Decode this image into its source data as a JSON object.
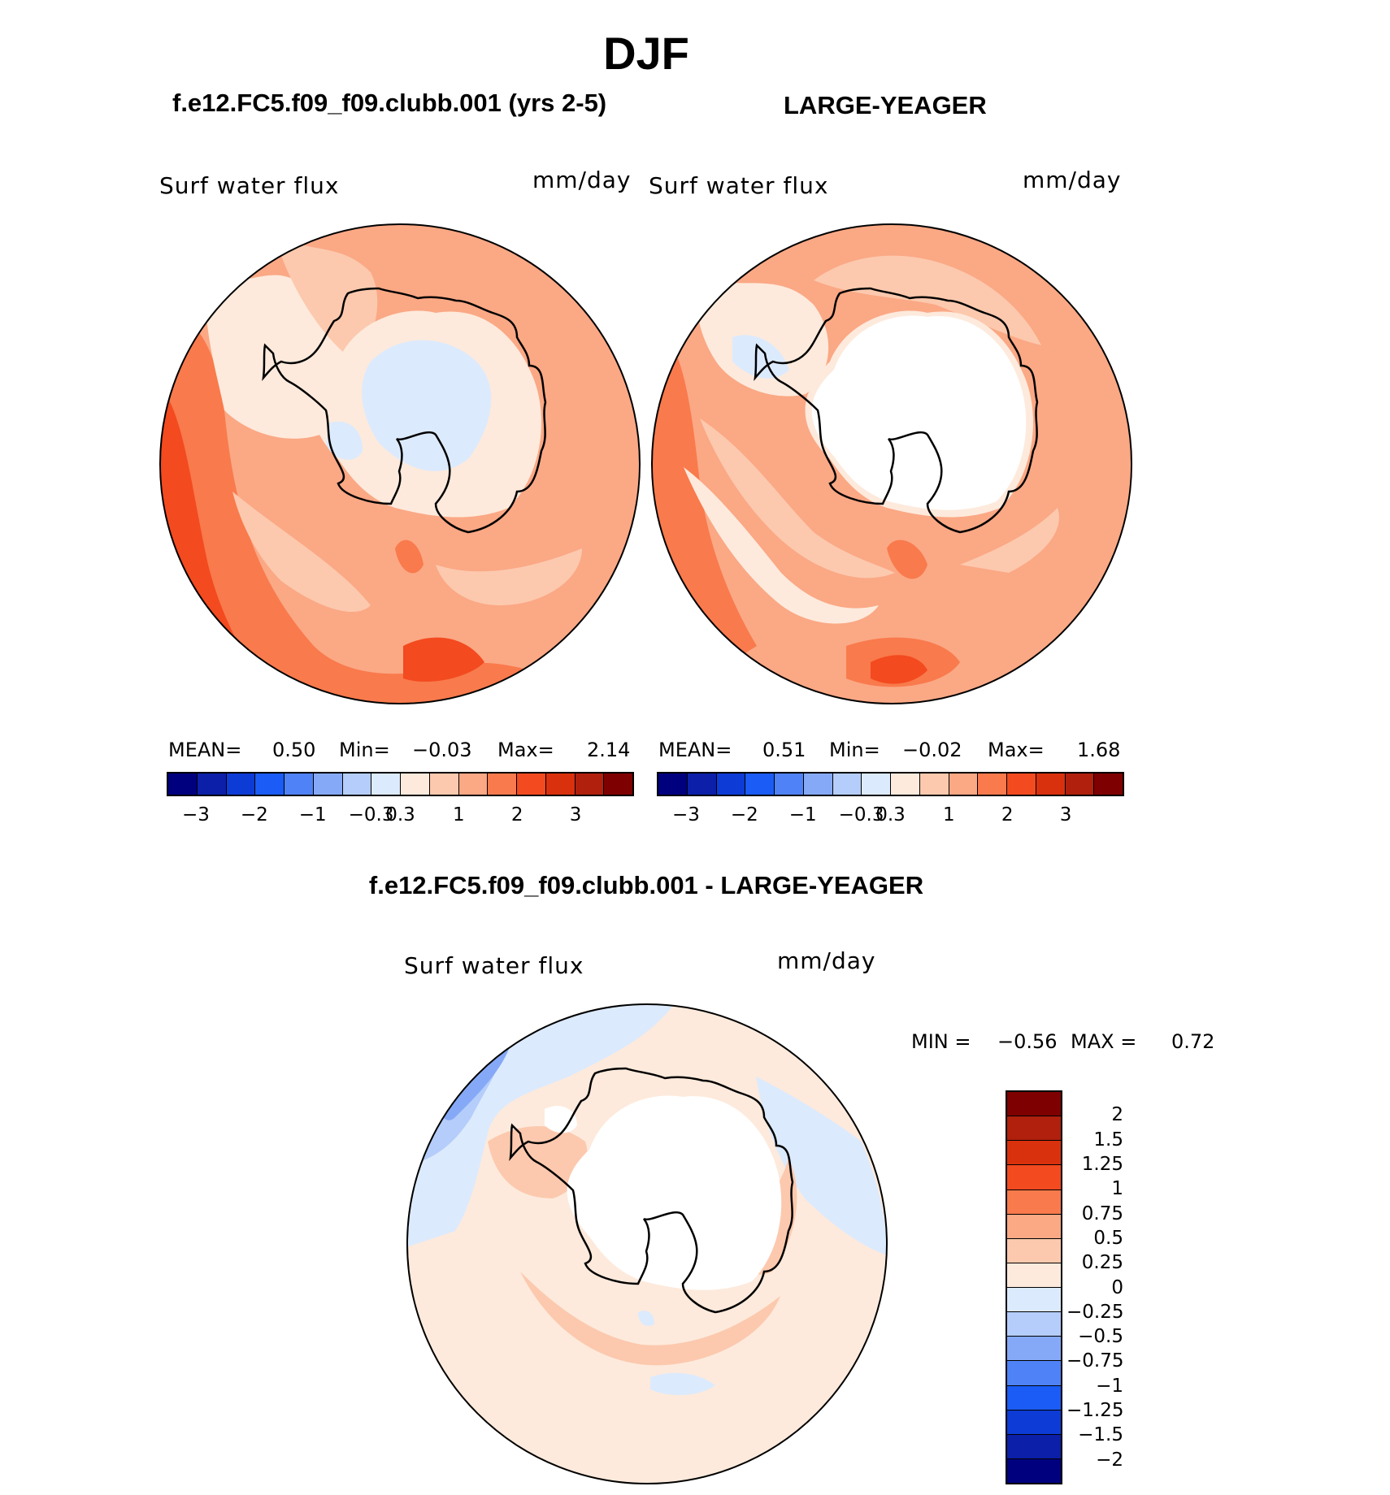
{
  "figure": {
    "title": "DJF",
    "bottom_title": "f.e12.FC5.f09_f09.clubb.001 - LARGE-YEAGER"
  },
  "panels": [
    {
      "case_title": "f.e12.FC5.f09_f09.clubb.001 (yrs 2-5)",
      "field": "Surf water flux",
      "units": "mm/day",
      "stats": {
        "mean_label": "MEAN=",
        "mean": "0.50",
        "min_label": "Min=",
        "min": "−0.03",
        "max_label": "Max=",
        "max": "2.14"
      }
    },
    {
      "case_title": "LARGE-YEAGER",
      "field": "Surf water flux",
      "units": "mm/day",
      "stats": {
        "mean_label": "MEAN=",
        "mean": "0.51",
        "min_label": "Min=",
        "min": "−0.02",
        "max_label": "Max=",
        "max": "1.68"
      }
    }
  ],
  "diff_panel": {
    "field": "Surf water flux",
    "units": "mm/day",
    "minmax": {
      "min_label": "MIN =",
      "min": "−0.56",
      "max_label": "MAX =",
      "max": "0.72"
    }
  },
  "colorbar_main": {
    "colors": [
      "#00007f",
      "#0b1fa8",
      "#0d3bd6",
      "#1a5cf5",
      "#4f82f7",
      "#86a9f7",
      "#b5cdfa",
      "#dceafd",
      "#fdeadc",
      "#fcc9ae",
      "#fba885",
      "#f97a4c",
      "#f34a1f",
      "#d9310d",
      "#b0200c",
      "#7f0000"
    ],
    "tick_labels": [
      "−3",
      "−2",
      "−1",
      "−0.3",
      "0.3",
      "1",
      "2",
      "3"
    ]
  },
  "colorbar_diff": {
    "colors": [
      "#7f0000",
      "#b0200c",
      "#d9310d",
      "#f34a1f",
      "#f97a4c",
      "#fba885",
      "#fcc9ae",
      "#fdeadc",
      "#dceafd",
      "#b5cdfa",
      "#86a9f7",
      "#4f82f7",
      "#1a5cf5",
      "#0d3bd6",
      "#0b1fa8",
      "#00007f"
    ],
    "tick_labels": [
      "2",
      "1.5",
      "1.25",
      "1",
      "0.75",
      "0.5",
      "0.25",
      "0",
      "−0.25",
      "−0.5",
      "−0.75",
      "−1",
      "−1.25",
      "−1.5",
      "−2"
    ]
  }
}
